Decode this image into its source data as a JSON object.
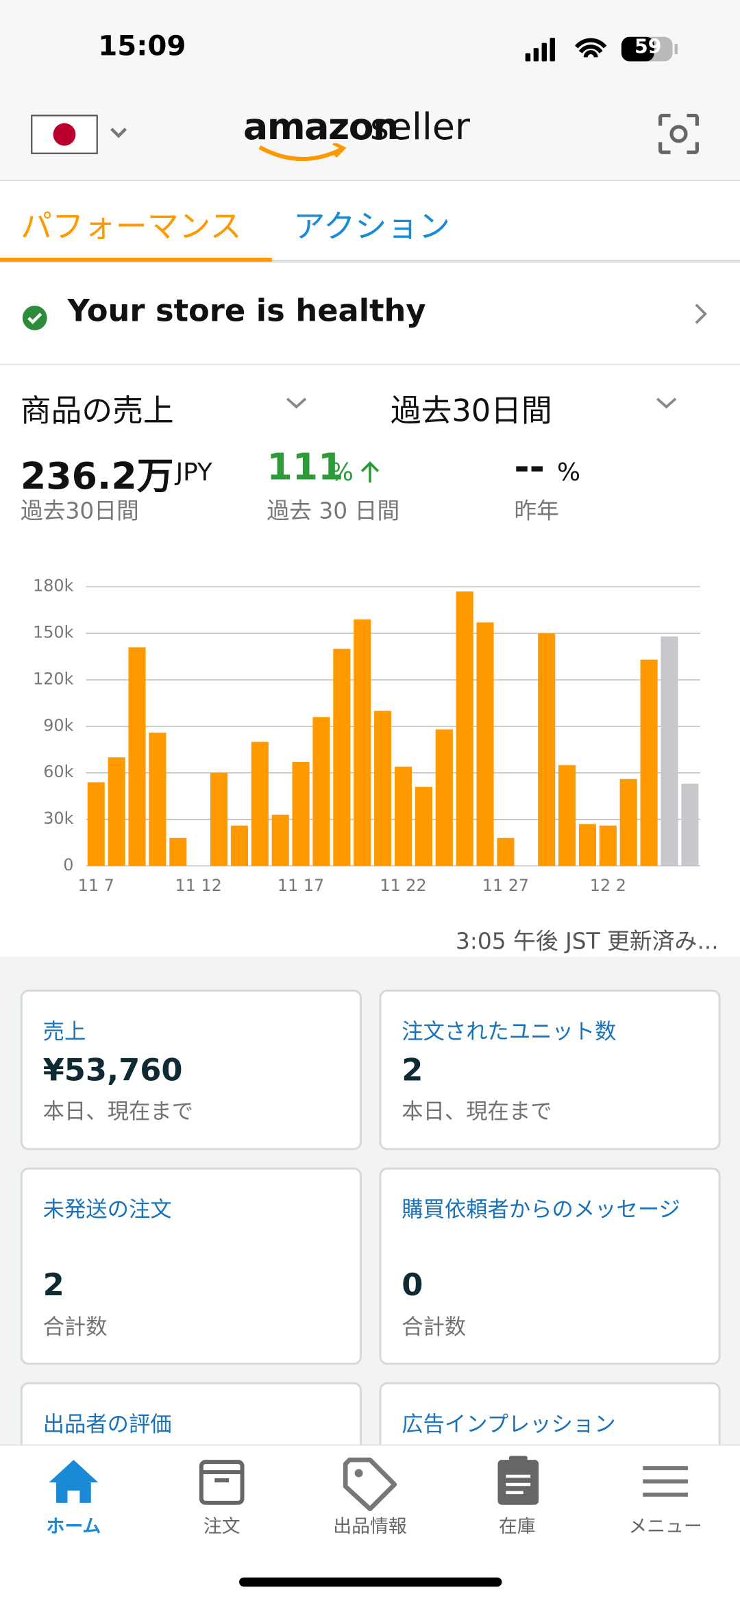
{
  "status_bar": {
    "time": "15:09",
    "battery": "59"
  },
  "header": {
    "logo_main": "amazon",
    "logo_sub": "seller"
  },
  "tabs": [
    "パフォーマンス",
    "アクション"
  ],
  "health": "Your store is healthy",
  "selectors": {
    "metric": "商品の売上",
    "period": "過去30日間"
  },
  "metrics": [
    {
      "value": "236.2万",
      "unit": "JPY",
      "caption": "過去30日間"
    },
    {
      "value": "111",
      "unit": "%",
      "caption": "過去 30 日間"
    },
    {
      "value": "--",
      "unit": "%",
      "caption": "昨年"
    }
  ],
  "chart_data": {
    "type": "bar",
    "categories": [
      "11 7",
      null,
      null,
      null,
      null,
      "11 12",
      null,
      null,
      null,
      null,
      "11 17",
      null,
      null,
      null,
      null,
      "11 22",
      null,
      null,
      null,
      null,
      "11 27",
      null,
      null,
      null,
      null,
      "12 2",
      null,
      null,
      null,
      null
    ],
    "values": [
      54000,
      70000,
      141000,
      86000,
      18000,
      0,
      60000,
      26000,
      80000,
      33000,
      67000,
      96000,
      140000,
      159000,
      100000,
      64000,
      51000,
      88000,
      177000,
      157000,
      18000,
      0,
      150000,
      65000,
      27000,
      26000,
      56000,
      133000,
      148000,
      53000
    ],
    "colors": [
      "#ff9900",
      "#ff9900",
      "#ff9900",
      "#ff9900",
      "#ff9900",
      "#ff9900",
      "#ff9900",
      "#ff9900",
      "#ff9900",
      "#ff9900",
      "#ff9900",
      "#ff9900",
      "#ff9900",
      "#ff9900",
      "#ff9900",
      "#ff9900",
      "#ff9900",
      "#ff9900",
      "#ff9900",
      "#ff9900",
      "#ff9900",
      "#ff9900",
      "#ff9900",
      "#ff9900",
      "#ff9900",
      "#ff9900",
      "#ff9900",
      "#ff9900",
      "#c8c8cc",
      "#c8c8cc"
    ],
    "ylim": [
      0,
      180000
    ],
    "yticks": [
      0,
      {
        "value": 30000,
        "label": "30k"
      },
      {
        "value": 60000,
        "label": "60k"
      },
      {
        "value": 90000,
        "label": "90k"
      },
      {
        "value": 120000,
        "label": "120k"
      },
      {
        "value": 150000,
        "label": "150k"
      },
      {
        "value": 180000,
        "label": "180k"
      }
    ],
    "grid": true
  },
  "updated": "3:05 午後 JST 更新済み...",
  "cards": [
    {
      "title": "売上",
      "value": "¥53,760",
      "caption": "本日、現在まで"
    },
    {
      "title": "注文されたユニット数",
      "value": "2",
      "caption": "本日、現在まで"
    },
    {
      "title": "未発送の注文",
      "value": "2",
      "caption": "合計数"
    },
    {
      "title": "購買依頼者からのメッセージ",
      "value": "0",
      "caption": "合計数"
    },
    {
      "title": "出品者の評価"
    },
    {
      "title": "広告インプレッション"
    }
  ],
  "nav": [
    "ホーム",
    "注文",
    "出品情報",
    "在庫",
    "メニュー"
  ]
}
